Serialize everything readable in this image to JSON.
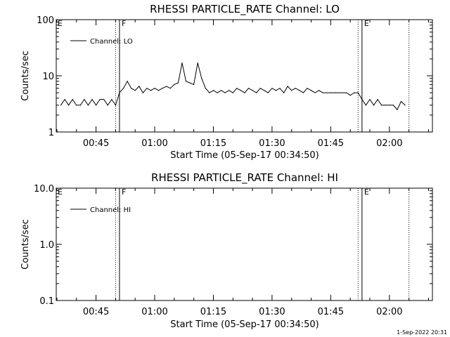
{
  "chart_data": [
    {
      "type": "line",
      "title": "RHESSI PARTICLE_RATE Channel: LO",
      "xlabel": "Start Time (05-Sep-17 00:34:50)",
      "ylabel": "Counts/sec",
      "yscale": "log",
      "ylim": [
        1,
        100
      ],
      "xlim": [
        "00:34:50",
        "02:11:00"
      ],
      "y_tick_labels": [
        "1",
        "10",
        "100"
      ],
      "y_tick_values": [
        1,
        10,
        100
      ],
      "x_tick_labels": [
        "00:45",
        "01:00",
        "01:15",
        "01:30",
        "01:45",
        "02:00"
      ],
      "x_tick_values": [
        "00:45",
        "01:00",
        "01:15",
        "01:30",
        "01:45",
        "02:00"
      ],
      "legend": {
        "position": "top-left",
        "entries": [
          "Channel: LO"
        ]
      },
      "markers": [
        {
          "label": "F",
          "time": "00:51",
          "style": "solid"
        },
        {
          "label": "E",
          "time": "01:53",
          "style": "solid"
        },
        {
          "label": "",
          "time": "00:50",
          "style": "dotted"
        },
        {
          "label": "",
          "time": "01:52",
          "style": "dotted"
        },
        {
          "label": "",
          "time": "02:05",
          "style": "dotted"
        }
      ],
      "corner_mark": "E",
      "series": [
        {
          "name": "Channel: LO",
          "x": [
            "00:36",
            "00:37",
            "00:38",
            "00:39",
            "00:40",
            "00:41",
            "00:42",
            "00:43",
            "00:44",
            "00:45",
            "00:46",
            "00:47",
            "00:48",
            "00:49",
            "00:50",
            "00:51",
            "00:52",
            "00:53",
            "00:54",
            "00:55",
            "00:56",
            "00:57",
            "00:58",
            "00:59",
            "01:00",
            "01:01",
            "01:02",
            "01:03",
            "01:04",
            "01:05",
            "01:06",
            "01:07",
            "01:08",
            "01:09",
            "01:10",
            "01:11",
            "01:12",
            "01:13",
            "01:14",
            "01:15",
            "01:16",
            "01:17",
            "01:18",
            "01:19",
            "01:20",
            "01:21",
            "01:22",
            "01:23",
            "01:24",
            "01:25",
            "01:26",
            "01:27",
            "01:28",
            "01:29",
            "01:30",
            "01:31",
            "01:32",
            "01:33",
            "01:34",
            "01:35",
            "01:36",
            "01:37",
            "01:38",
            "01:39",
            "01:40",
            "01:41",
            "01:42",
            "01:43",
            "01:44",
            "01:45",
            "01:46",
            "01:47",
            "01:48",
            "01:49",
            "01:50",
            "01:51",
            "01:52",
            "01:53",
            "01:54",
            "01:55",
            "01:56",
            "01:57",
            "01:58",
            "01:59",
            "02:00",
            "02:01",
            "02:02",
            "02:03",
            "02:04"
          ],
          "y": [
            3,
            3.8,
            3,
            3.8,
            3,
            3,
            3.8,
            3,
            3.8,
            3,
            3.8,
            3.8,
            3,
            3.8,
            3,
            5,
            6,
            8,
            6,
            5.5,
            6.5,
            5,
            6,
            5.5,
            6,
            5.5,
            6,
            6.5,
            6,
            7,
            7.5,
            17,
            8,
            7.5,
            7,
            17,
            9,
            6,
            5,
            5.5,
            5,
            5.5,
            5,
            5.5,
            5,
            6,
            5.5,
            5,
            6,
            5.5,
            5,
            6,
            5.5,
            5,
            6,
            5.5,
            6,
            5,
            6.5,
            5.5,
            6,
            5.5,
            5,
            6,
            5.5,
            5,
            5.5,
            5,
            5,
            5,
            5,
            5,
            5,
            5,
            4.5,
            5,
            5,
            3.8,
            3,
            3.8,
            3,
            3.8,
            3,
            3,
            3,
            3,
            2.5,
            3.5,
            3
          ]
        }
      ]
    },
    {
      "type": "line",
      "title": "RHESSI PARTICLE_RATE Channel: HI",
      "xlabel": "Start Time (05-Sep-17 00:34:50)",
      "ylabel": "Counts/sec",
      "yscale": "log",
      "ylim": [
        0.1,
        10
      ],
      "xlim": [
        "00:34:50",
        "02:11:00"
      ],
      "y_tick_labels": [
        "0.1",
        "1.0",
        "10.0"
      ],
      "y_tick_values": [
        0.1,
        1,
        10
      ],
      "x_tick_labels": [
        "00:45",
        "01:00",
        "01:15",
        "01:30",
        "01:45",
        "02:00"
      ],
      "x_tick_values": [
        "00:45",
        "01:00",
        "01:15",
        "01:30",
        "01:45",
        "02:00"
      ],
      "legend": {
        "position": "top-left",
        "entries": [
          "Channel: HI"
        ]
      },
      "markers": [
        {
          "label": "F",
          "time": "00:51",
          "style": "solid"
        },
        {
          "label": "E",
          "time": "01:53",
          "style": "solid"
        },
        {
          "label": "",
          "time": "00:50",
          "style": "dotted"
        },
        {
          "label": "",
          "time": "01:52",
          "style": "dotted"
        },
        {
          "label": "",
          "time": "02:05",
          "style": "dotted"
        }
      ],
      "corner_mark": "E",
      "series": [
        {
          "name": "Channel: HI",
          "x": [],
          "y": []
        }
      ]
    }
  ],
  "footer": {
    "timestamp": "1-Sep-2022 20:31"
  }
}
